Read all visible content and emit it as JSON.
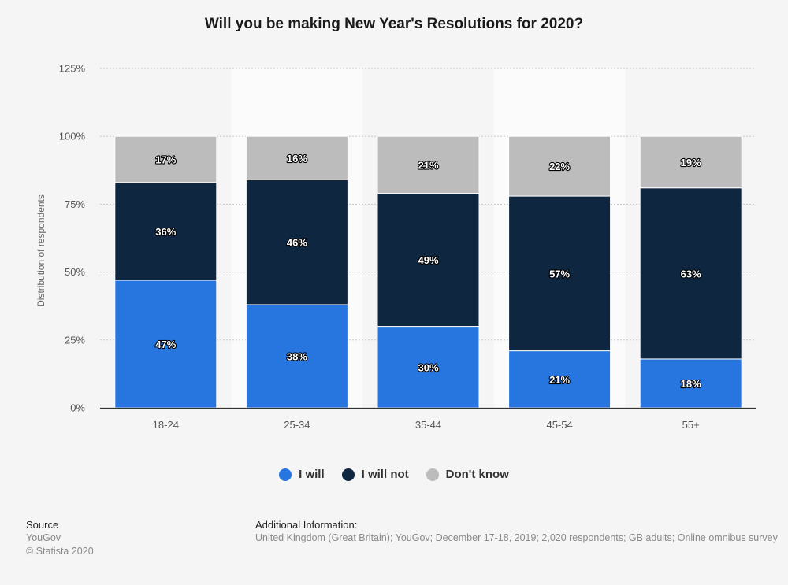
{
  "colors": {
    "i_will": "#2776e0",
    "i_will_not": "#0f2640",
    "dont_know": "#bcbcbc"
  },
  "chart_data": {
    "type": "bar",
    "stacked": true,
    "title": "Will you be making New Year's Resolutions for 2020?",
    "xlabel": "",
    "ylabel": "Distribution of respondents",
    "ylim": [
      0,
      125
    ],
    "yticks": [
      "0%",
      "25%",
      "50%",
      "75%",
      "100%",
      "125%"
    ],
    "grid": true,
    "legend_position": "bottom",
    "categories": [
      "18-24",
      "25-34",
      "35-44",
      "45-54",
      "55+"
    ],
    "series": [
      {
        "name": "I will",
        "color": "#2776e0",
        "values": [
          47,
          38,
          30,
          21,
          18
        ]
      },
      {
        "name": "I will not",
        "color": "#0f2640",
        "values": [
          36,
          46,
          49,
          57,
          63
        ]
      },
      {
        "name": "Don't know",
        "color": "#bcbcbc",
        "values": [
          17,
          16,
          21,
          22,
          19
        ]
      }
    ]
  },
  "footer": {
    "source_heading": "Source",
    "source_name": "YouGov",
    "copyright": "© Statista 2020",
    "additional_heading": "Additional Information:",
    "additional_text": "United Kingdom (Great Britain); YouGov; December 17-18, 2019; 2,020 respondents; GB adults; Online omnibus survey"
  }
}
